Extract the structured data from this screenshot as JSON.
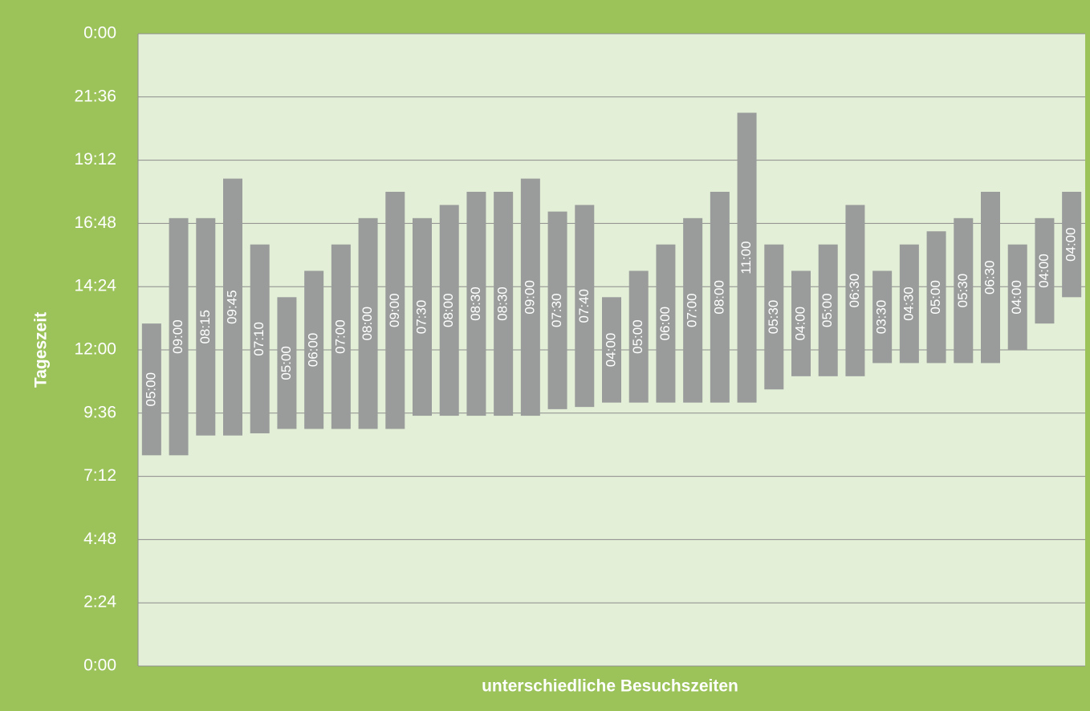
{
  "chart_data": {
    "type": "floating-bar",
    "ylabel": "Tageszeit",
    "xlabel": "unterschiedliche Besuchszeiten",
    "ylim": [
      0,
      24
    ],
    "yticks": [
      {
        "value": 0,
        "label": "0:00"
      },
      {
        "value": 2.4,
        "label": "2:24"
      },
      {
        "value": 4.8,
        "label": "4:48"
      },
      {
        "value": 7.2,
        "label": "7:12"
      },
      {
        "value": 9.6,
        "label": "9:36"
      },
      {
        "value": 12,
        "label": "12:00"
      },
      {
        "value": 14.4,
        "label": "14:24"
      },
      {
        "value": 16.8,
        "label": "16:48"
      },
      {
        "value": 19.2,
        "label": "19:12"
      },
      {
        "value": 21.6,
        "label": "21:36"
      },
      {
        "value": 24,
        "label": "0:00"
      }
    ],
    "grid": true,
    "color": "#9a9c9c",
    "base": [
      8,
      8,
      8.75,
      8.75,
      8.8333,
      9,
      9,
      9,
      9,
      9,
      9.5,
      9.5,
      9.5,
      9.5,
      9.5,
      9.75,
      9.8333,
      10,
      10,
      10,
      10,
      10,
      10,
      10.5,
      11,
      11,
      11,
      11.5,
      11.5,
      11.5,
      11.5,
      11.5,
      12,
      13,
      14
    ],
    "values": [
      5,
      9,
      8.25,
      9.75,
      7.1667,
      5,
      6,
      7,
      8,
      9,
      7.5,
      8,
      8.5,
      8.5,
      9,
      7.5,
      7.6667,
      4,
      5,
      6,
      7,
      8,
      11,
      5.5,
      4,
      5,
      6.5,
      3.5,
      4.5,
      5,
      5.5,
      6.5,
      4,
      4,
      4
    ],
    "value_labels": [
      "05:00",
      "09:00",
      "08:15",
      "09:45",
      "07:10",
      "05:00",
      "06:00",
      "07:00",
      "08:00",
      "09:00",
      "07:30",
      "08:00",
      "08:30",
      "08:30",
      "09:00",
      "07:30",
      "07:40",
      "04:00",
      "05:00",
      "06:00",
      "07:00",
      "08:00",
      "11:00",
      "05:30",
      "04:00",
      "05:00",
      "06:30",
      "03:30",
      "04:30",
      "05:00",
      "05:30",
      "06:30",
      "04:00",
      "04:00",
      "04:00"
    ]
  }
}
